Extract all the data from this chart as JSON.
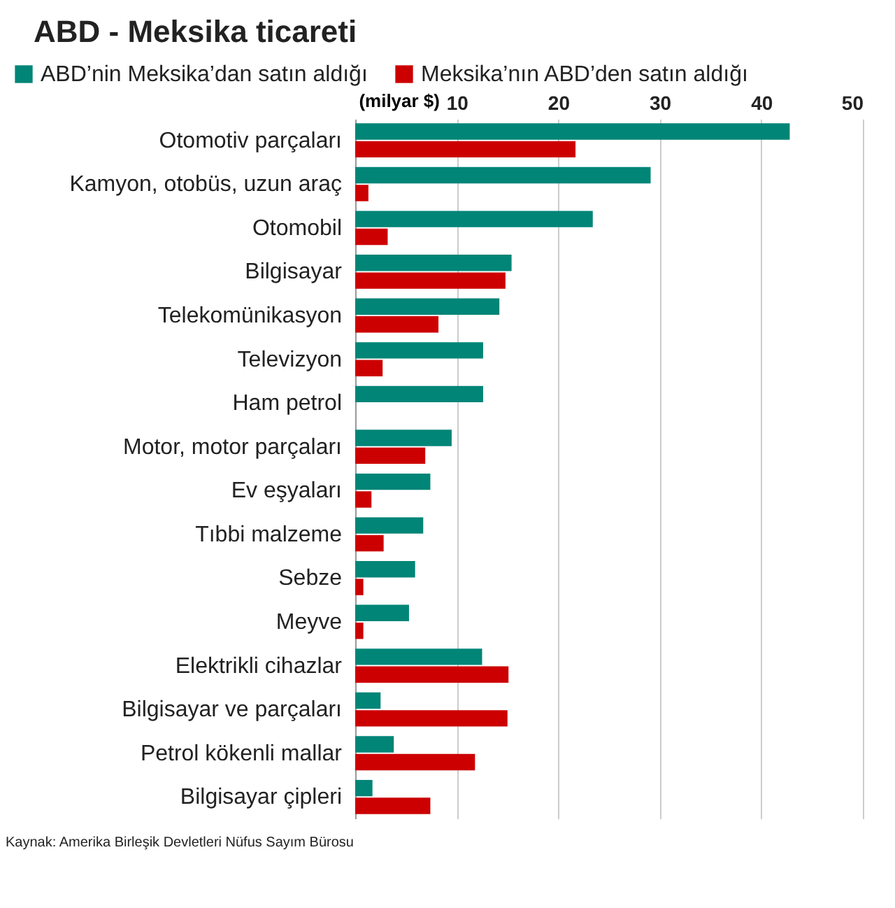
{
  "chart_data": {
    "type": "bar",
    "orientation": "horizontal",
    "title": "ABD - Meksika ticareti",
    "xlabel": "(milyar $)",
    "categories": [
      "Otomotiv parçaları",
      "Kamyon, otobüs, uzun araç",
      "Otomobil",
      "Bilgisayar",
      "Telekomünikasyon",
      "Televizyon",
      "Ham petrol",
      "Motor, motor parçaları",
      "Ev eşyaları",
      "Tıbbi malzeme",
      "Sebze",
      "Meyve",
      "Elektrikli cihazlar",
      "Bilgisayar ve parçaları",
      "Petrol kökenli mallar",
      "Bilgisayar çipleri"
    ],
    "series": [
      {
        "name": "ABD’nin Meksika’dan satın aldığı",
        "color": "#008577",
        "values": [
          42.8,
          29.1,
          23.4,
          15.4,
          14.2,
          12.6,
          12.6,
          9.5,
          7.4,
          6.7,
          5.9,
          5.3,
          12.5,
          2.5,
          3.8,
          1.7
        ]
      },
      {
        "name": "Meksika’nın ABD’den satın aldığı",
        "color": "#cc0000",
        "values": [
          21.7,
          1.3,
          3.2,
          14.8,
          8.2,
          2.7,
          null,
          6.9,
          1.6,
          2.8,
          0.8,
          0.8,
          15.1,
          15.0,
          11.8,
          7.4
        ]
      }
    ],
    "xlim": [
      0,
      50
    ],
    "xticks": [
      {
        "value": 0,
        "label": null
      },
      10,
      20,
      30,
      40,
      50
    ],
    "grid": "x",
    "legend": "top left",
    "annotations": [
      "Kaynak: Amerika Birleşik Devletleri Nüfus Sayım Bürosu"
    ]
  }
}
